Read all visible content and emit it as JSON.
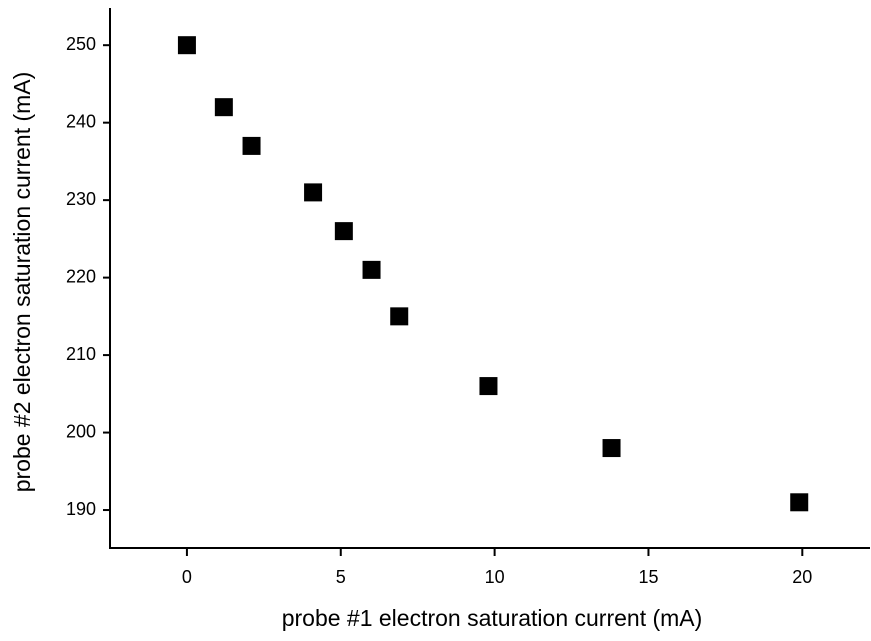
{
  "chart_data": {
    "type": "scatter",
    "xlabel": "probe #1 electron saturation current (mA)",
    "ylabel": "probe #2 electron saturation current (mA)",
    "x": [
      0,
      1.2,
      2.1,
      4.1,
      5.1,
      6,
      6.9,
      9.8,
      13.8,
      19.9
    ],
    "values": [
      250,
      242,
      237,
      231,
      226,
      221,
      215,
      206,
      198,
      191
    ],
    "color": "#000000",
    "xlim": [
      -2.5,
      22.2
    ],
    "xticks": [
      0,
      5,
      10,
      15,
      20
    ],
    "ylim": [
      185.1,
      254.8
    ],
    "yticks": [
      190,
      200,
      210,
      220,
      230,
      240,
      250
    ]
  }
}
